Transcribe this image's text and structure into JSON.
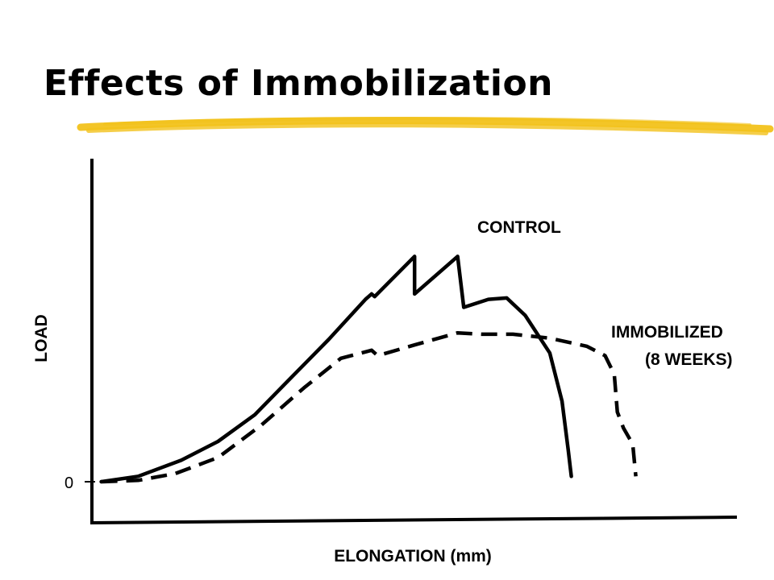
{
  "slide": {
    "title": "Effects of Immobilization",
    "highlight_color": "#F2C21B"
  },
  "chart_data": {
    "type": "line",
    "title": "",
    "xlabel": "ELONGATION (mm)",
    "ylabel": "LOAD",
    "x_ticks": [],
    "y_ticks": [
      "0"
    ],
    "xlim": [
      0,
      100
    ],
    "ylim": [
      0,
      100
    ],
    "grid": false,
    "legend": "inline labels",
    "series": [
      {
        "name": "CONTROL",
        "label_lines": [
          "CONTROL"
        ],
        "style": "solid",
        "color": "#000000",
        "points": [
          [
            1,
            0
          ],
          [
            7,
            2
          ],
          [
            14,
            8
          ],
          [
            20,
            15
          ],
          [
            26,
            25
          ],
          [
            32,
            39
          ],
          [
            38,
            53
          ],
          [
            44,
            68
          ],
          [
            45,
            70
          ],
          [
            45.5,
            69
          ],
          [
            52,
            84
          ],
          [
            52,
            70
          ],
          [
            59,
            84
          ],
          [
            60,
            65
          ],
          [
            64,
            68
          ],
          [
            67,
            68.5
          ],
          [
            70,
            62
          ],
          [
            74,
            48
          ],
          [
            76,
            30
          ],
          [
            77,
            12
          ],
          [
            77.5,
            2
          ]
        ]
      },
      {
        "name": "IMMOBILIZED (8 WEEKS)",
        "label_lines": [
          "IMMOBILIZED",
          "(8 WEEKS)"
        ],
        "style": "dashed",
        "color": "#000000",
        "points": [
          [
            1,
            0
          ],
          [
            7,
            0.5
          ],
          [
            13,
            3
          ],
          [
            20,
            9
          ],
          [
            27,
            21
          ],
          [
            34,
            35
          ],
          [
            40,
            46
          ],
          [
            45,
            49
          ],
          [
            46,
            47
          ],
          [
            52,
            51
          ],
          [
            59,
            55.5
          ],
          [
            63,
            55
          ],
          [
            68,
            55
          ],
          [
            74,
            53.5
          ],
          [
            80,
            50.5
          ],
          [
            83,
            47
          ],
          [
            84.5,
            40
          ],
          [
            85,
            26
          ],
          [
            86,
            20
          ],
          [
            87.5,
            14
          ],
          [
            88,
            2
          ]
        ]
      }
    ]
  }
}
